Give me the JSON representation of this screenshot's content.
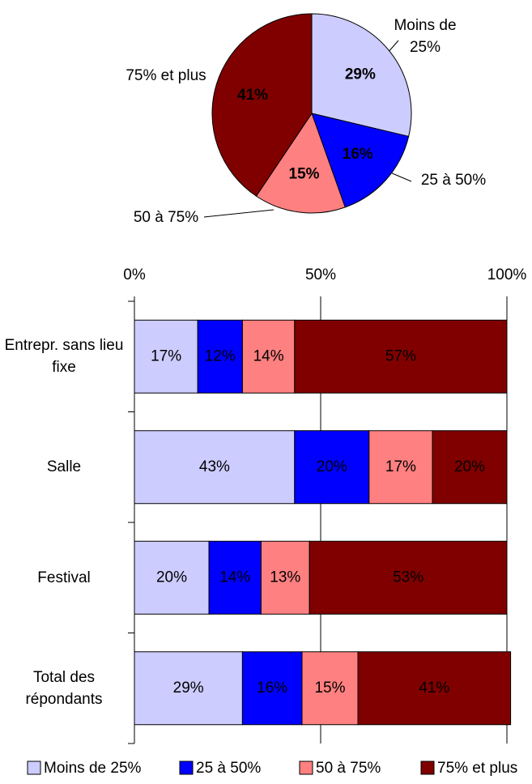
{
  "chart_data": [
    {
      "type": "pie",
      "categories": [
        "Moins de 25%",
        "25 à 50%",
        "50 à 75%",
        "75% et plus"
      ],
      "values": [
        29,
        16,
        15,
        41
      ],
      "value_labels": [
        "29%",
        "16%",
        "15%",
        "41%"
      ],
      "colors": [
        "#ccccff",
        "#0000ff",
        "#ff8080",
        "#800000"
      ]
    },
    {
      "type": "stacked_bar_horizontal",
      "categories": [
        "Entrepr. sans lieu fixe",
        "Salle",
        "Festival",
        "Total des répondants"
      ],
      "series": [
        {
          "name": "Moins de 25%",
          "color": "#ccccff",
          "values": [
            17,
            43,
            20,
            29
          ],
          "value_labels": [
            "17%",
            "43%",
            "20%",
            "29%"
          ]
        },
        {
          "name": "25 à 50%",
          "color": "#0000ff",
          "values": [
            12,
            20,
            14,
            16
          ],
          "value_labels": [
            "12%",
            "20%",
            "14%",
            "16%"
          ]
        },
        {
          "name": "50 à 75%",
          "color": "#ff8080",
          "values": [
            14,
            17,
            13,
            15
          ],
          "value_labels": [
            "14%",
            "17%",
            "13%",
            "15%"
          ]
        },
        {
          "name": "75% et plus",
          "color": "#800000",
          "values": [
            57,
            20,
            53,
            41
          ],
          "value_labels": [
            "57%",
            "20%",
            "53%",
            "41%"
          ]
        }
      ],
      "xlim": [
        0,
        100
      ],
      "xticks": [
        {
          "value": 0,
          "label": "0%"
        },
        {
          "value": 50,
          "label": "50%"
        },
        {
          "value": 100,
          "label": "100%"
        }
      ],
      "grid": true,
      "legend": "bottom"
    }
  ]
}
